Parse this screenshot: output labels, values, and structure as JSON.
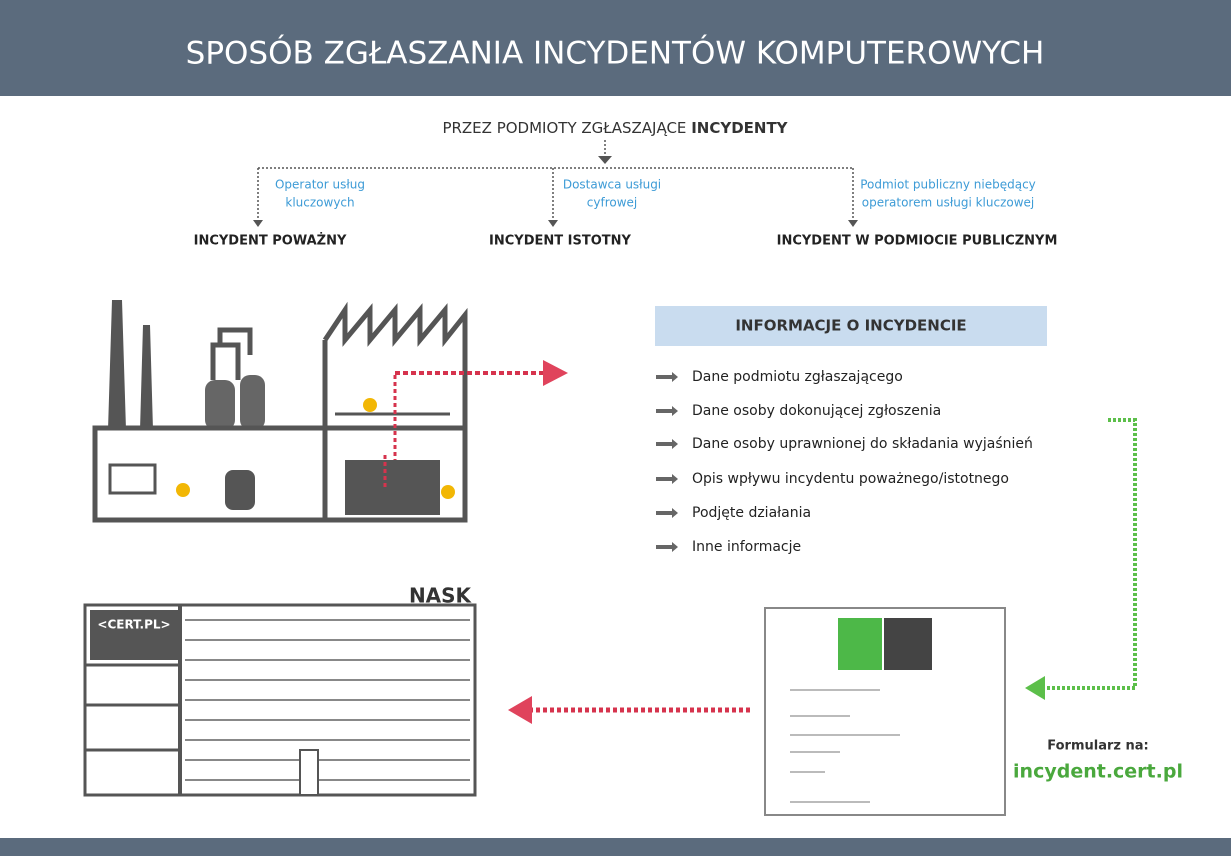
{
  "header": {
    "title": "SPOSÓB ZGŁASZANIA INCYDENTÓW KOMPUTEROWYCH"
  },
  "subtitle": {
    "prefix": "PRZEZ PODMIOTY ZGŁASZAJĄCE",
    "emphasis": "INCYDENTY"
  },
  "branches": [
    {
      "label": [
        "Operator usług",
        "kluczowych"
      ],
      "result": "INCYDENT POWAŻNY"
    },
    {
      "label": [
        "Dostawca usługi",
        "cyfrowej"
      ],
      "result": "INCYDENT ISTOTNY"
    },
    {
      "label": [
        "Podmiot publiczny niebędący",
        "operatorem usługi kluczowej"
      ],
      "result": "INCYDENT W PODMIOCIE PUBLICZNYM"
    }
  ],
  "info": {
    "title": "INFORMACJE O INCYDENCIE",
    "items": [
      "Dane podmiotu zgłaszającego",
      "Dane osoby dokonującej zgłoszenia",
      "Dane osoby uprawnionej do składania wyjaśnień",
      "Opis wpływu incydentu poważnego/istotnego",
      "Podjęte działania",
      "Inne informacje"
    ]
  },
  "building": {
    "name": "NASK",
    "sign": "<CERT.PL>"
  },
  "form": {
    "label": "Formularz na:",
    "url": "incydent.cert.pl"
  }
}
